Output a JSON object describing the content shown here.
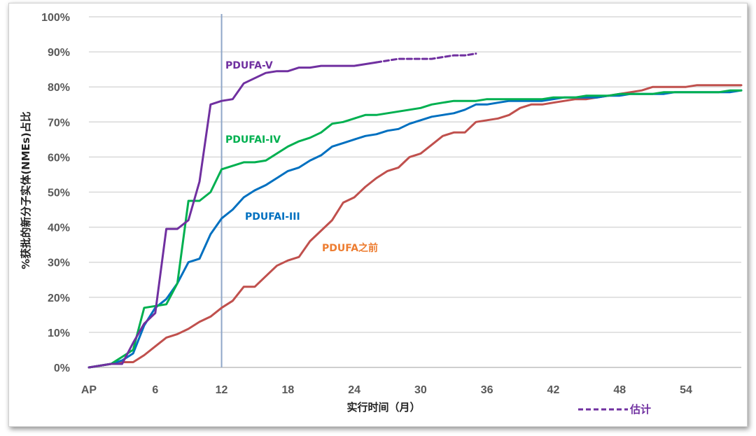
{
  "chart_data": {
    "type": "line",
    "title": "",
    "xlabel": "实行时间（月）",
    "ylabel": "%获批的新分子实体(NMEs)占比",
    "xlim": [
      0,
      59
    ],
    "ylim": [
      0,
      100
    ],
    "x_ticks": [
      {
        "value": 0,
        "label": "AP"
      },
      {
        "value": 6,
        "label": "6"
      },
      {
        "value": 12,
        "label": "12"
      },
      {
        "value": 18,
        "label": "18"
      },
      {
        "value": 24,
        "label": "24"
      },
      {
        "value": 30,
        "label": "30"
      },
      {
        "value": 36,
        "label": "36"
      },
      {
        "value": 42,
        "label": "42"
      },
      {
        "value": 48,
        "label": "48"
      },
      {
        "value": 54,
        "label": "54"
      }
    ],
    "y_ticks": [
      "0%",
      "10%",
      "20%",
      "30%",
      "40%",
      "50%",
      "60%",
      "70%",
      "80%",
      "90%",
      "100%"
    ],
    "grid": true,
    "reference_line": {
      "x": 12,
      "color": "#8fa6c8"
    },
    "legend": {
      "label": "估计",
      "color": "#7030a0",
      "style": "dashed",
      "position": "bottom-right"
    },
    "series": [
      {
        "name": "PDUFA之前",
        "color": "#c0504d",
        "x": [
          0,
          1,
          2,
          3,
          4,
          5,
          6,
          7,
          8,
          9,
          10,
          11,
          12,
          13,
          14,
          15,
          16,
          17,
          18,
          19,
          20,
          21,
          22,
          23,
          24,
          25,
          26,
          27,
          28,
          29,
          30,
          31,
          32,
          33,
          34,
          35,
          36,
          37,
          38,
          39,
          40,
          41,
          42,
          43,
          44,
          45,
          46,
          47,
          48,
          49,
          50,
          51,
          52,
          53,
          54,
          55,
          56,
          57,
          58,
          59
        ],
        "y": [
          0,
          0.5,
          1,
          1.5,
          1.5,
          3.5,
          6,
          8.5,
          9.5,
          11,
          13,
          14.5,
          17,
          19,
          23,
          23,
          26,
          29,
          30.5,
          31.5,
          36,
          39,
          42,
          47,
          48.5,
          51.5,
          54,
          56,
          57,
          60,
          61,
          63.5,
          66,
          67,
          67,
          70,
          70.5,
          71,
          72,
          74,
          75,
          75,
          75.5,
          76,
          76.5,
          76.5,
          77,
          77.5,
          78,
          78.5,
          79,
          80,
          80,
          80,
          80,
          80.5,
          80.5,
          80.5,
          80.5,
          80.5
        ]
      },
      {
        "name": "PDUFAI-III",
        "color": "#0070c0",
        "x": [
          0,
          1,
          2,
          3,
          4,
          5,
          6,
          7,
          8,
          9,
          10,
          11,
          12,
          13,
          14,
          15,
          16,
          17,
          18,
          19,
          20,
          21,
          22,
          23,
          24,
          25,
          26,
          27,
          28,
          29,
          30,
          31,
          32,
          33,
          34,
          35,
          36,
          37,
          38,
          39,
          40,
          41,
          42,
          43,
          44,
          45,
          46,
          47,
          48,
          49,
          50,
          51,
          52,
          53,
          54,
          55,
          56,
          57,
          58,
          59
        ],
        "y": [
          0,
          0.5,
          1,
          2,
          4,
          12,
          17,
          19.5,
          24,
          30,
          31,
          38,
          42.5,
          45,
          48.5,
          50.5,
          52,
          54,
          56,
          57,
          59,
          60.5,
          63,
          64,
          65,
          66,
          66.5,
          67.5,
          68,
          69.5,
          70.5,
          71.5,
          72,
          72.5,
          73.5,
          75,
          75,
          75.5,
          76,
          76,
          76,
          76,
          76.5,
          77,
          77,
          77,
          77,
          77.5,
          77.5,
          78,
          78,
          78,
          78,
          78.5,
          78.5,
          78.5,
          78.5,
          78.5,
          78.5,
          79
        ]
      },
      {
        "name": "PDUFAI-IV",
        "color": "#00b050",
        "x": [
          0,
          1,
          2,
          3,
          4,
          5,
          6,
          7,
          8,
          9,
          10,
          11,
          12,
          13,
          14,
          15,
          16,
          17,
          18,
          19,
          20,
          21,
          22,
          23,
          24,
          25,
          26,
          27,
          28,
          29,
          30,
          31,
          32,
          33,
          34,
          35,
          36,
          37,
          38,
          39,
          40,
          41,
          42,
          43,
          44,
          45,
          46,
          47,
          48,
          49,
          50,
          51,
          52,
          53,
          54,
          55,
          56,
          57,
          58,
          59
        ],
        "y": [
          0,
          0.5,
          1,
          3,
          5,
          17,
          17.5,
          18,
          24,
          47.5,
          47.5,
          50,
          56.5,
          57.5,
          58.5,
          58.5,
          59,
          61,
          63,
          64.5,
          65.5,
          67,
          69.5,
          70,
          71,
          72,
          72,
          72.5,
          73,
          73.5,
          74,
          75,
          75.5,
          76,
          76,
          76,
          76.5,
          76.5,
          76.5,
          76.5,
          76.5,
          76.5,
          77,
          77,
          77,
          77.5,
          77.5,
          77.5,
          78,
          78,
          78,
          78,
          78.5,
          78.5,
          78.5,
          78.5,
          78.5,
          78.5,
          79,
          79
        ]
      },
      {
        "name": "PDUFA-V",
        "color": "#7030a0",
        "x": [
          0,
          1,
          2,
          3,
          4,
          5,
          6,
          7,
          8,
          9,
          10,
          11,
          12,
          13,
          14,
          15,
          16,
          17,
          18,
          19,
          20,
          21,
          22,
          23,
          24,
          25,
          26
        ],
        "y": [
          0,
          0.5,
          1,
          1,
          7,
          12.5,
          15.5,
          39.5,
          39.5,
          42,
          53,
          75,
          76,
          76.5,
          81,
          82.5,
          84,
          84.5,
          84.5,
          85.5,
          85.5,
          86,
          86,
          86,
          86,
          86.5,
          87
        ]
      },
      {
        "name": "估计",
        "color": "#7030a0",
        "style": "dashed",
        "x": [
          26,
          27,
          28,
          29,
          30,
          31,
          32,
          33,
          34,
          35
        ],
        "y": [
          87,
          87.5,
          88,
          88,
          88,
          88,
          88.5,
          89,
          89,
          89.5
        ]
      }
    ],
    "annotations": [
      {
        "text": "PDUFA-V",
        "color": "#7030a0"
      },
      {
        "text": "PDUFAI-IV",
        "color": "#00b050"
      },
      {
        "text": "PDUFAI-III",
        "color": "#0070c0"
      },
      {
        "text": "PDUFA之前",
        "color": "#ed7d31"
      }
    ]
  }
}
